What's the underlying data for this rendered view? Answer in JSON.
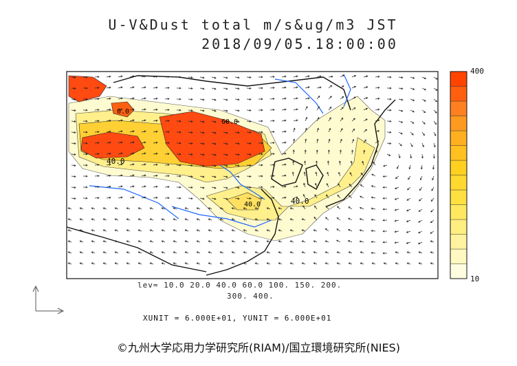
{
  "title_line1": "U-V&Dust total m/s&ug/m3 JST",
  "title_line2": "2018/09/05.18:00:00",
  "levels_line1": "lev= 10.0 20.0 40.0 60.0 100. 150. 200.",
  "levels_line2": "300. 400.",
  "unit_line": "XUNIT = 6.000E+01, YUNIT = 6.000E+01",
  "credit": "©九州大学応用力学研究所(RIAM)/国立環境研究所(NIES)",
  "colorbar": {
    "max_label": "400",
    "min_label": "10",
    "colors": [
      "#fffde0",
      "#fff8c0",
      "#fff3a0",
      "#ffee80",
      "#ffe860",
      "#ffe040",
      "#ffd830",
      "#ffd020",
      "#ffc020",
      "#ffb020",
      "#ff9a20",
      "#ff8020",
      "#ff6010",
      "#ff4400"
    ]
  },
  "contour_labels": [
    "40.0",
    "40.0",
    "60.0",
    "40.0",
    "0.0"
  ],
  "colors": {
    "heavy": "#ff4a12",
    "high": "#ff8a28",
    "mid": "#ffd034",
    "low": "#fff08c",
    "faint": "#fffbd0",
    "river": "#1a66ff",
    "coast": "#111111"
  }
}
